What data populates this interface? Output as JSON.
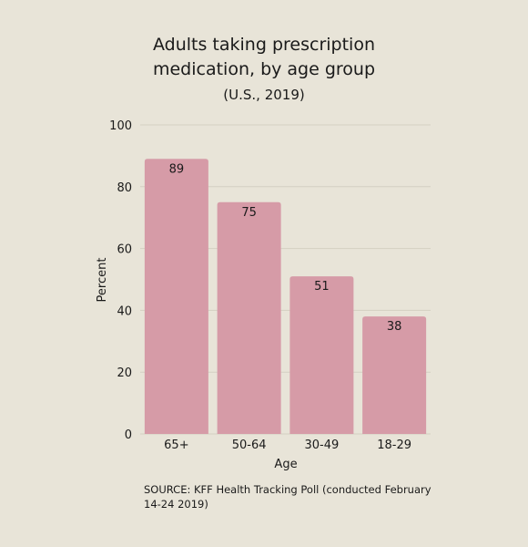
{
  "chart_data": {
    "type": "bar",
    "title_line1": "Adults taking prescription",
    "title_line2": "medication, by age group",
    "subtitle": "(U.S., 2019)",
    "xlabel": "Age",
    "ylabel": "Percent",
    "categories": [
      "65+",
      "50-64",
      "30-49",
      "18-29"
    ],
    "values": [
      89,
      75,
      51,
      38
    ],
    "value_labels": [
      "89",
      "75",
      "51",
      "38"
    ],
    "ylim": [
      0,
      100
    ],
    "yticks": [
      0,
      20,
      40,
      60,
      80,
      100
    ],
    "ytick_labels": [
      "0",
      "20",
      "40",
      "60",
      "80",
      "100"
    ],
    "grid": true,
    "bar_color": "#d69ba7",
    "grid_color": "#d3cfc2"
  },
  "source": "SOURCE: KFF Health Tracking Poll (conducted February 14-24 2019)"
}
